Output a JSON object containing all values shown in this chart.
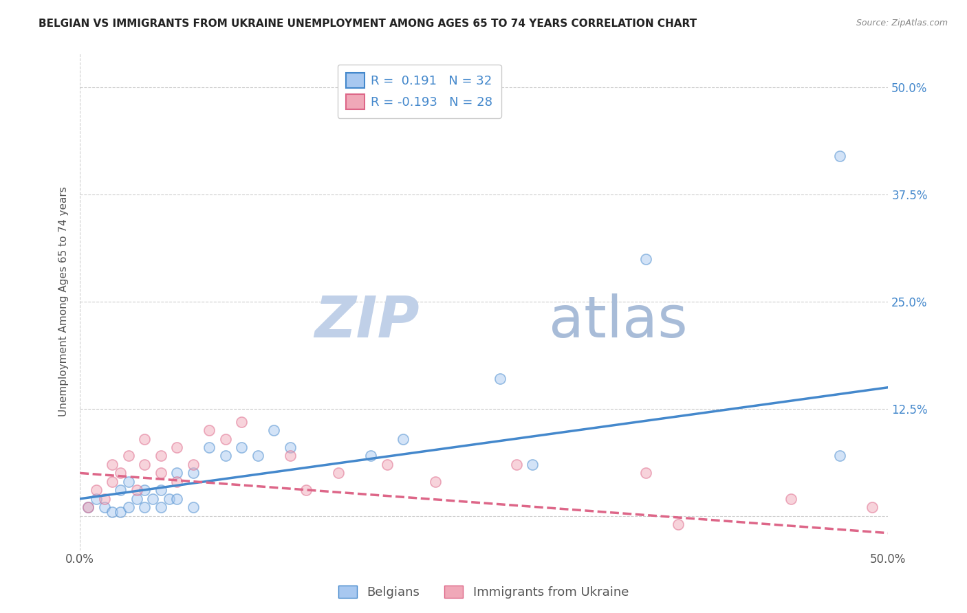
{
  "title": "BELGIAN VS IMMIGRANTS FROM UKRAINE UNEMPLOYMENT AMONG AGES 65 TO 74 YEARS CORRELATION CHART",
  "source": "Source: ZipAtlas.com",
  "watermark_zip": "ZIP",
  "watermark_atlas": "atlas",
  "ylabel": "Unemployment Among Ages 65 to 74 years",
  "xlim": [
    0.0,
    0.5
  ],
  "ylim": [
    -0.04,
    0.54
  ],
  "yticks": [
    0.0,
    0.125,
    0.25,
    0.375,
    0.5
  ],
  "ytick_labels": [
    "",
    "12.5%",
    "25.0%",
    "37.5%",
    "50.0%"
  ],
  "xticks": [
    0.0,
    0.125,
    0.25,
    0.375,
    0.5
  ],
  "xtick_labels": [
    "0.0%",
    "",
    "",
    "",
    "50.0%"
  ],
  "legend_blue_r": "0.191",
  "legend_blue_n": "32",
  "legend_pink_r": "-0.193",
  "legend_pink_n": "28",
  "blue_color": "#A8C8F0",
  "pink_color": "#F0A8B8",
  "blue_line_color": "#4488CC",
  "pink_line_color": "#DD6688",
  "grid_color": "#CCCCCC",
  "background_color": "#FFFFFF",
  "blue_scatter_x": [
    0.005,
    0.01,
    0.015,
    0.02,
    0.025,
    0.025,
    0.03,
    0.03,
    0.035,
    0.04,
    0.04,
    0.045,
    0.05,
    0.05,
    0.055,
    0.06,
    0.06,
    0.07,
    0.07,
    0.08,
    0.09,
    0.1,
    0.11,
    0.12,
    0.13,
    0.18,
    0.2,
    0.26,
    0.28,
    0.35,
    0.47,
    0.47
  ],
  "blue_scatter_y": [
    0.01,
    0.02,
    0.01,
    0.005,
    0.03,
    0.005,
    0.01,
    0.04,
    0.02,
    0.01,
    0.03,
    0.02,
    0.01,
    0.03,
    0.02,
    0.05,
    0.02,
    0.05,
    0.01,
    0.08,
    0.07,
    0.08,
    0.07,
    0.1,
    0.08,
    0.07,
    0.09,
    0.16,
    0.06,
    0.3,
    0.42,
    0.07
  ],
  "pink_scatter_x": [
    0.005,
    0.01,
    0.015,
    0.02,
    0.02,
    0.025,
    0.03,
    0.035,
    0.04,
    0.04,
    0.05,
    0.05,
    0.06,
    0.06,
    0.07,
    0.08,
    0.09,
    0.1,
    0.13,
    0.14,
    0.16,
    0.19,
    0.22,
    0.27,
    0.35,
    0.37,
    0.44,
    0.49
  ],
  "pink_scatter_y": [
    0.01,
    0.03,
    0.02,
    0.04,
    0.06,
    0.05,
    0.07,
    0.03,
    0.06,
    0.09,
    0.07,
    0.05,
    0.08,
    0.04,
    0.06,
    0.1,
    0.09,
    0.11,
    0.07,
    0.03,
    0.05,
    0.06,
    0.04,
    0.06,
    0.05,
    -0.01,
    0.02,
    0.01
  ],
  "blue_trend_x": [
    0.0,
    0.5
  ],
  "blue_trend_y": [
    0.02,
    0.15
  ],
  "pink_trend_x": [
    0.0,
    0.5
  ],
  "pink_trend_y": [
    0.05,
    -0.02
  ],
  "title_fontsize": 11,
  "axis_label_fontsize": 11,
  "tick_fontsize": 12,
  "legend_fontsize": 13,
  "watermark_fontsize": 60,
  "watermark_color": "#C8D8EC",
  "scatter_size": 120,
  "scatter_alpha": 0.5,
  "scatter_linewidth": 1.2
}
